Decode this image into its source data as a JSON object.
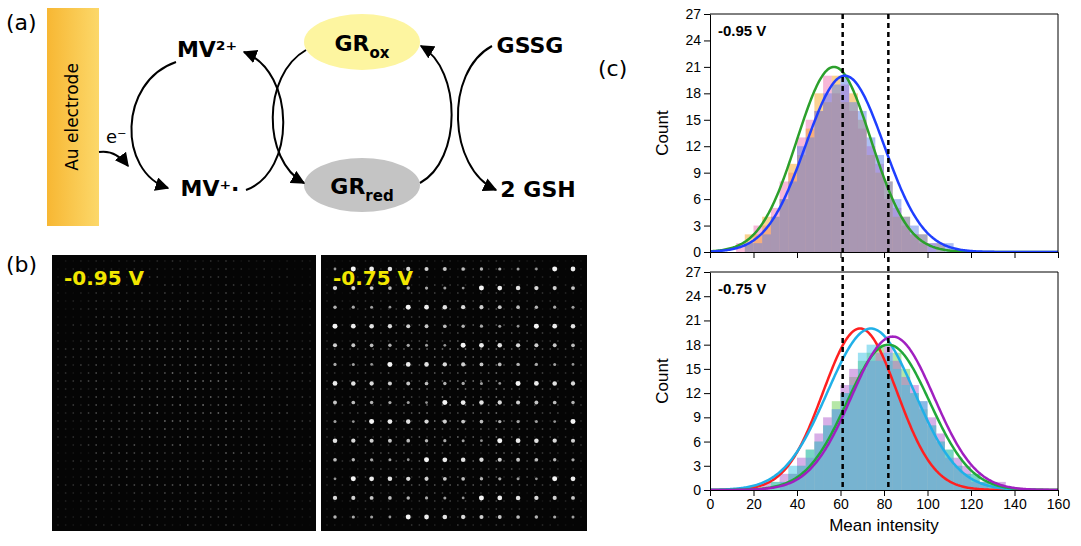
{
  "panel_labels": [
    "(a)",
    "(b)",
    "(c)"
  ],
  "diagram": {
    "electrode": "Au electrode",
    "electron": "e⁻",
    "nodes": [
      {
        "text": "MV²⁺"
      },
      {
        "text": "MV⁺·"
      },
      {
        "text": "GR",
        "sub": "ox"
      },
      {
        "text": "GR",
        "sub": "red"
      },
      {
        "text": "GSSG"
      },
      {
        "text": "2 GSH"
      }
    ]
  },
  "images": [
    {
      "label": "-0.95 V"
    },
    {
      "label": "-0.75 V"
    }
  ],
  "dashed_lines": {
    "x": [
      61,
      82
    ]
  },
  "chart_data": [
    {
      "type": "histogram",
      "title": "-0.95 V",
      "y_label": "Count",
      "xlim": [
        0,
        160
      ],
      "xticks": [
        0,
        20,
        40,
        60,
        80,
        100,
        120,
        140,
        160
      ],
      "ylim": [
        0,
        27
      ],
      "yticks": [
        0,
        3,
        6,
        9,
        12,
        15,
        18,
        21,
        24,
        27
      ],
      "tick_labels": "y",
      "bins": [
        12,
        16,
        20,
        24,
        28,
        32,
        36,
        40,
        44,
        48,
        52,
        56,
        60,
        64,
        68,
        72,
        76,
        80,
        84,
        88,
        92,
        96,
        100,
        104,
        108,
        112,
        116
      ],
      "series": [
        {
          "color": "#f06fb0",
          "values": [
            1,
            1,
            3,
            3,
            5,
            8,
            9,
            13,
            15,
            16,
            20,
            18,
            19,
            16,
            14,
            12,
            10,
            6,
            5,
            3,
            2,
            1,
            1,
            0,
            0,
            0
          ]
        },
        {
          "color": "#f5a623",
          "values": [
            0,
            2,
            2,
            4,
            4,
            6,
            10,
            11,
            14,
            18,
            17,
            20,
            17,
            18,
            15,
            11,
            9,
            8,
            4,
            4,
            2,
            2,
            0,
            1,
            0,
            0
          ]
        },
        {
          "color": "#5b7fe8",
          "values": [
            0,
            1,
            1,
            2,
            4,
            6,
            8,
            12,
            13,
            16,
            18,
            19,
            20,
            17,
            16,
            13,
            11,
            8,
            6,
            4,
            3,
            2,
            1,
            1,
            1,
            0
          ]
        }
      ],
      "fits": [
        {
          "color": "#2ca02c",
          "center": 57,
          "sigma": 17,
          "amplitude": 21
        },
        {
          "color": "#1f3fff",
          "center": 62,
          "sigma": 18,
          "amplitude": 20
        }
      ]
    },
    {
      "type": "histogram",
      "title": "-0.75 V",
      "x_label": "Mean intensity",
      "y_label": "Count",
      "xlim": [
        0,
        160
      ],
      "xticks": [
        0,
        20,
        40,
        60,
        80,
        100,
        120,
        140,
        160
      ],
      "ylim": [
        0,
        27
      ],
      "yticks": [
        0,
        3,
        6,
        9,
        12,
        15,
        18,
        21,
        24,
        27
      ],
      "bins": [
        24,
        28,
        32,
        36,
        40,
        44,
        48,
        52,
        56,
        60,
        64,
        68,
        72,
        76,
        80,
        84,
        88,
        92,
        96,
        100,
        104,
        108,
        112,
        116,
        120,
        124,
        128,
        132,
        136,
        140,
        144
      ],
      "series": [
        {
          "color": "#6ccf4f",
          "values": [
            0,
            1,
            1,
            2,
            3,
            5,
            6,
            8,
            11,
            12,
            14,
            16,
            17,
            18,
            16,
            17,
            15,
            12,
            10,
            8,
            6,
            5,
            3,
            2,
            2,
            1,
            1,
            0,
            0,
            0
          ]
        },
        {
          "color": "#b05fd0",
          "values": [
            1,
            0,
            2,
            2,
            4,
            4,
            7,
            9,
            10,
            13,
            15,
            15,
            16,
            17,
            18,
            16,
            14,
            13,
            11,
            9,
            7,
            4,
            4,
            3,
            1,
            1,
            0,
            1,
            0,
            0
          ]
        },
        {
          "color": "#3cc3e6",
          "values": [
            0,
            1,
            1,
            3,
            3,
            5,
            6,
            8,
            10,
            12,
            13,
            17,
            18,
            16,
            17,
            15,
            13,
            12,
            11,
            8,
            6,
            5,
            3,
            2,
            2,
            1,
            1,
            0,
            0,
            0
          ]
        }
      ],
      "fits": [
        {
          "color": "#ff2020",
          "center": 69,
          "sigma": 17,
          "amplitude": 20
        },
        {
          "color": "#20b0e8",
          "center": 74,
          "sigma": 20,
          "amplitude": 20
        },
        {
          "color": "#21a83a",
          "center": 82,
          "sigma": 19,
          "amplitude": 18
        },
        {
          "color": "#a020c0",
          "center": 84,
          "sigma": 19,
          "amplitude": 19
        }
      ]
    }
  ]
}
